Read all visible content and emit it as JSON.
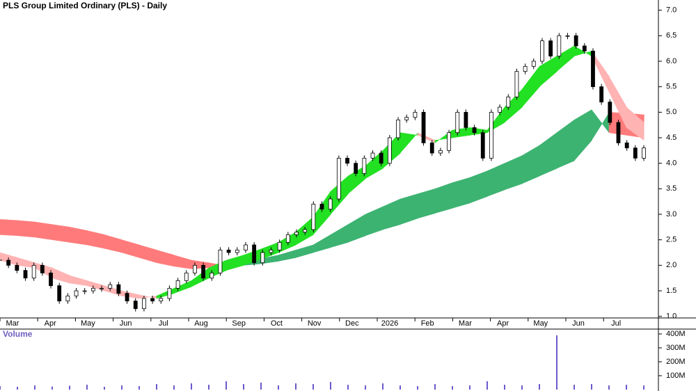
{
  "chart_data": {
    "type": "candlestick",
    "title": "PLS Group Limited Ordinary (PLS) - Daily",
    "categories": [
      "Mar",
      "Apr",
      "May",
      "Jun",
      "Jul",
      "Aug",
      "Sep",
      "Oct",
      "Nov",
      "Dec",
      "2026",
      "Feb",
      "Mar",
      "Apr",
      "May",
      "Jun",
      "Jul"
    ],
    "ylim": [
      0.9,
      7.2
    ],
    "yticks": [
      {
        "value": 1,
        "label": "1.0"
      },
      1.5,
      {
        "value": 2,
        "label": "2.0"
      },
      2.5,
      {
        "value": 3,
        "label": "3.0"
      },
      3.5,
      {
        "value": 4,
        "label": "4.0"
      },
      4.5,
      {
        "value": 5,
        "label": "5.0"
      },
      5.5,
      {
        "value": 6,
        "label": "6.0"
      },
      6.5,
      {
        "value": 7,
        "label": "7.0"
      }
    ],
    "close": [
      2.1,
      2.0,
      1.9,
      1.75,
      2.0,
      1.85,
      1.6,
      1.3,
      1.4,
      1.5,
      1.5,
      1.55,
      1.55,
      1.62,
      1.45,
      1.3,
      1.15,
      1.35,
      1.3,
      1.35,
      1.55,
      1.7,
      1.85,
      2.0,
      1.75,
      1.85,
      2.3,
      2.25,
      2.3,
      2.4,
      2.05,
      2.25,
      2.3,
      2.45,
      2.6,
      2.65,
      2.7,
      3.2,
      3.1,
      3.3,
      4.1,
      4.0,
      3.8,
      4.1,
      4.2,
      4.0,
      4.5,
      4.85,
      4.9,
      5.0,
      4.4,
      4.2,
      4.25,
      4.6,
      5.0,
      4.7,
      4.6,
      4.1,
      5.0,
      5.1,
      5.3,
      5.8,
      5.9,
      6.0,
      6.4,
      6.1,
      6.5,
      6.5,
      6.3,
      6.2,
      5.5,
      5.2,
      4.8,
      4.4,
      4.3,
      4.1,
      4.3
    ],
    "bands": [
      {
        "up_color": "#3cb371",
        "down_color": "#ff7b7b",
        "fast": [
          2.6,
          2.58,
          2.55,
          2.5,
          2.45,
          2.4,
          2.33,
          2.25,
          2.15,
          2.05,
          1.98,
          1.93,
          1.95,
          2.0,
          2.08,
          2.13,
          2.2,
          2.3,
          2.4,
          2.6,
          2.8,
          3.0,
          3.15,
          3.3,
          3.4,
          3.5,
          3.62,
          3.72,
          3.85,
          4.0,
          4.15,
          4.35,
          4.6,
          4.85,
          5.05,
          4.6,
          4.55,
          4.5
        ],
        "slow": [
          2.9,
          2.88,
          2.85,
          2.8,
          2.75,
          2.68,
          2.6,
          2.5,
          2.4,
          2.3,
          2.2,
          2.1,
          2.05,
          1.99,
          2.0,
          2.03,
          2.08,
          2.15,
          2.25,
          2.35,
          2.45,
          2.58,
          2.7,
          2.8,
          2.92,
          3.02,
          3.12,
          3.22,
          3.35,
          3.48,
          3.6,
          3.75,
          3.9,
          4.05,
          4.45,
          5.0,
          4.98,
          4.95
        ]
      },
      {
        "up_color": "#22e022",
        "down_color": "#ffb3b3",
        "fast": [
          2.1,
          2.0,
          1.95,
          1.75,
          1.65,
          1.6,
          1.5,
          1.4,
          1.35,
          1.4,
          1.55,
          1.7,
          1.95,
          2.1,
          2.2,
          2.32,
          2.45,
          2.65,
          2.95,
          3.45,
          3.75,
          3.95,
          4.25,
          4.6,
          4.55,
          4.4,
          4.65,
          4.7,
          4.65,
          5.1,
          5.45,
          5.9,
          6.1,
          6.3,
          6.1,
          5.4,
          4.7,
          4.45
        ],
        "slow": [
          2.25,
          2.15,
          2.05,
          1.95,
          1.8,
          1.7,
          1.6,
          1.5,
          1.42,
          1.35,
          1.45,
          1.58,
          1.75,
          1.9,
          2.0,
          2.12,
          2.25,
          2.4,
          2.6,
          3.0,
          3.4,
          3.7,
          3.9,
          4.2,
          4.6,
          4.45,
          4.5,
          4.55,
          4.6,
          4.8,
          5.1,
          5.5,
          5.8,
          6.1,
          6.2,
          5.7,
          5.1,
          4.8
        ]
      }
    ],
    "volume_label": "Volume",
    "volume_color": "#6a5acd",
    "volume_ylim": [
      0,
      430000000
    ],
    "volume_ticks": [
      {
        "value": 100000000,
        "label": "100M"
      },
      {
        "value": 200000000,
        "label": "200M"
      },
      {
        "value": 300000000,
        "label": "300M"
      },
      {
        "value": 400000000,
        "label": "400M"
      }
    ],
    "volume": [
      25000000,
      20000000,
      30000000,
      22000000,
      28000000,
      35000000,
      20000000,
      30000000,
      25000000,
      40000000,
      30000000,
      45000000,
      35000000,
      60000000,
      40000000,
      50000000,
      30000000,
      45000000,
      40000000,
      55000000,
      35000000,
      30000000,
      45000000,
      30000000,
      25000000,
      40000000,
      25000000,
      30000000,
      60000000,
      35000000,
      30000000,
      40000000,
      390000000,
      35000000,
      40000000,
      30000000,
      35000000,
      30000000
    ]
  }
}
